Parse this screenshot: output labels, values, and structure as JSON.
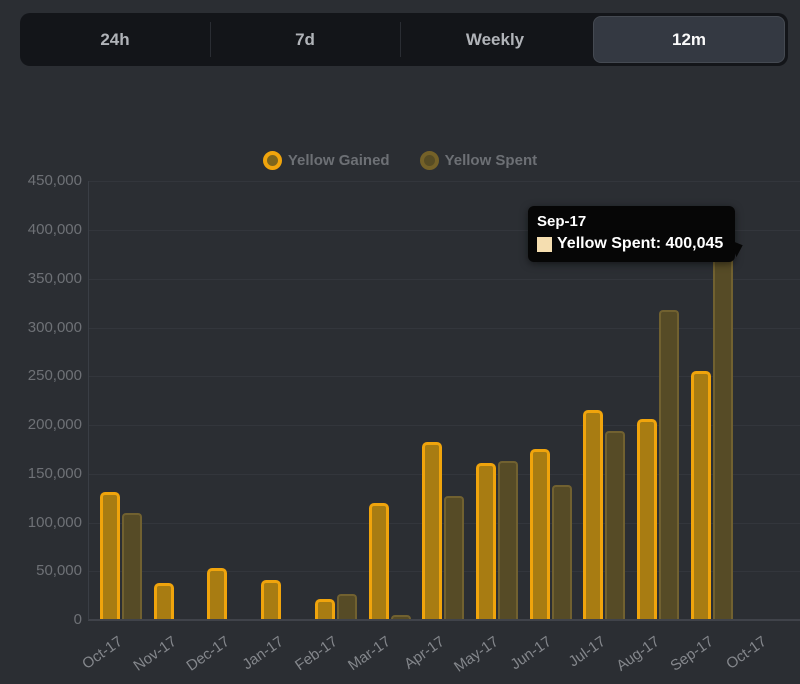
{
  "tabs": {
    "items": [
      {
        "label": "24h",
        "selected": false
      },
      {
        "label": "7d",
        "selected": false
      },
      {
        "label": "Weekly",
        "selected": false
      },
      {
        "label": "12m",
        "selected": true
      }
    ]
  },
  "legend": {
    "items": [
      {
        "label": "Yellow Gained",
        "ring_color": "#f0a40c",
        "fill_color": "#7d651c"
      },
      {
        "label": "Yellow Spent",
        "ring_color": "#746128",
        "fill_color": "#574c24"
      }
    ]
  },
  "tooltip": {
    "title": "Sep-17",
    "text": "Yellow Spent: 400,045",
    "swatch_color": "#f5deb0"
  },
  "colors": {
    "page_background": "#2b2e33",
    "tabbar_background": "#131519",
    "selected_tab_background": "#343942",
    "gained_border": "#f0a40c",
    "gained_fill": "#a87c12",
    "spent_border": "#716130",
    "spent_fill": "#564b26",
    "gridline": "#33363c",
    "tooltip_background": "#060606"
  },
  "chart_data": {
    "type": "bar",
    "title": "",
    "xlabel": "",
    "ylabel": "",
    "categories": [
      "Oct-17",
      "Nov-17",
      "Dec-17",
      "Jan-17",
      "Feb-17",
      "Mar-17",
      "Apr-17",
      "May-17",
      "Jun-17",
      "Jul-17",
      "Aug-17",
      "Sep-17",
      "Oct-17"
    ],
    "series": [
      {
        "name": "Yellow Gained",
        "values": [
          131000,
          38000,
          53000,
          41000,
          22000,
          120000,
          183000,
          161000,
          175000,
          215000,
          206000,
          255000,
          0
        ]
      },
      {
        "name": "Yellow Spent",
        "values": [
          110000,
          0,
          0,
          0,
          27000,
          5000,
          127000,
          163000,
          138000,
          194000,
          318000,
          400045,
          0
        ]
      }
    ],
    "ylim": [
      0,
      450000
    ],
    "yticks": [
      0,
      50000,
      100000,
      150000,
      200000,
      250000,
      300000,
      350000,
      400000,
      450000
    ],
    "grid": true,
    "legend_position": "top",
    "tooltip": {
      "category": "Sep-17",
      "series": "Yellow Spent",
      "value": 400045
    }
  }
}
